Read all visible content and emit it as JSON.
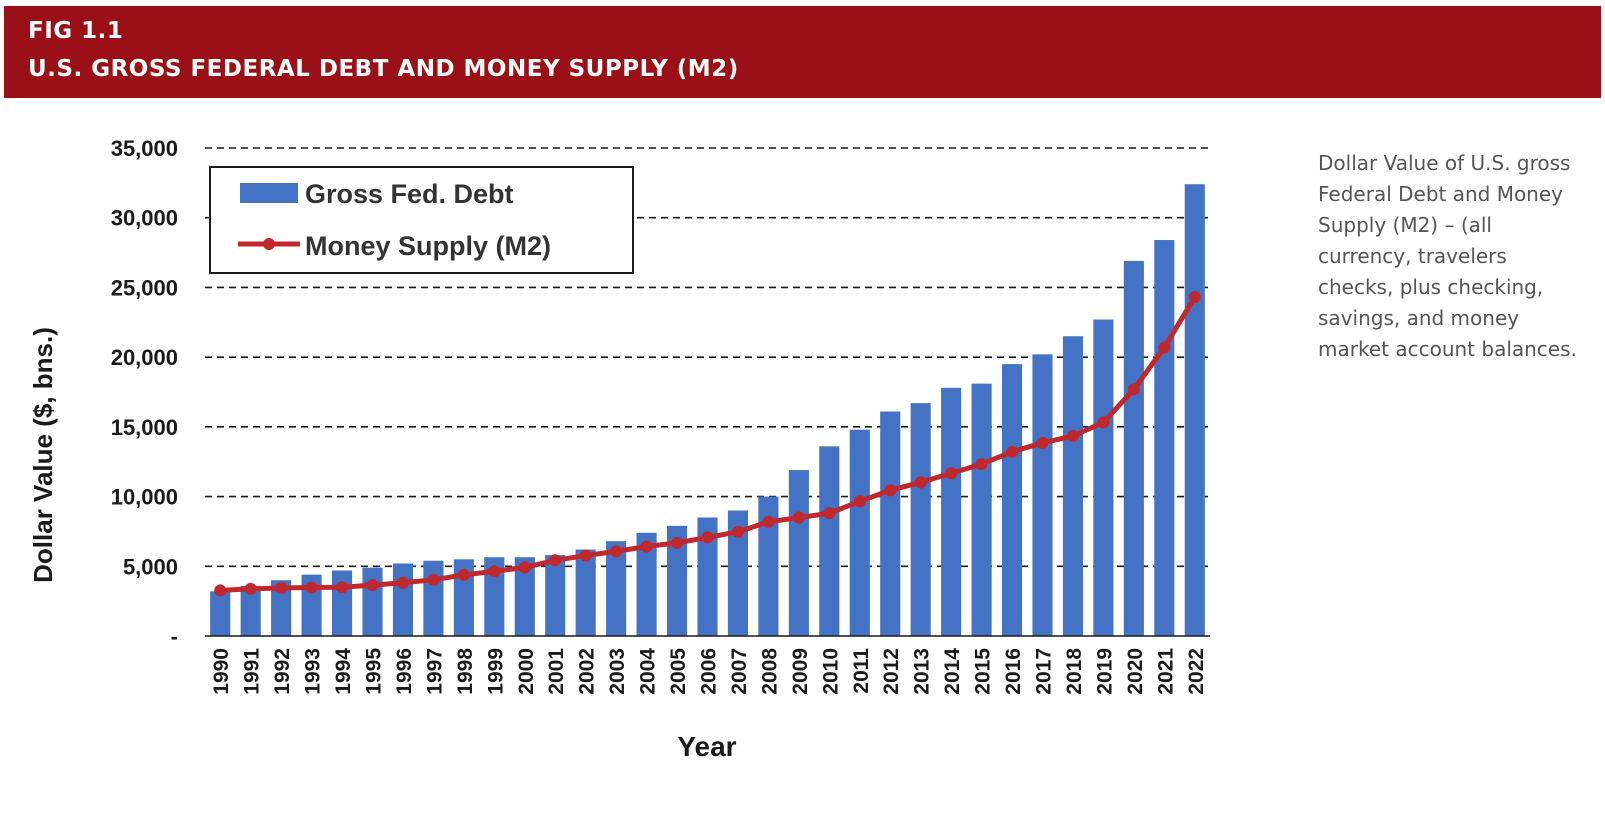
{
  "header": {
    "fig_label": "FIG 1.1",
    "title": "U.S. GROSS FEDERAL DEBT AND MONEY SUPPLY (M2)",
    "background_color": "#9b1016"
  },
  "side_note": "Dollar Value of U.S. gross Federal Debt and Money Supply (M2) – (all currency, travelers checks, plus checking, savings, and money market account balances.",
  "chart_data": {
    "type": "bar",
    "title": "",
    "xlabel": "Year",
    "ylabel": "Dollar Value ($, bns.)",
    "ylim": [
      0,
      35000
    ],
    "y_ticks": [
      0,
      5000,
      10000,
      15000,
      20000,
      25000,
      30000,
      35000
    ],
    "y_tick_labels": [
      "-",
      "5,000",
      "10,000",
      "15,000",
      "20,000",
      "25,000",
      "30,000",
      "35,000"
    ],
    "grid": "horizontal dashed",
    "legend_position": "top-left",
    "categories": [
      "1990",
      "1991",
      "1992",
      "1993",
      "1994",
      "1995",
      "1996",
      "1997",
      "1998",
      "1999",
      "2000",
      "2001",
      "2002",
      "2003",
      "2004",
      "2005",
      "2006",
      "2007",
      "2008",
      "2009",
      "2010",
      "2011",
      "2012",
      "2013",
      "2014",
      "2015",
      "2016",
      "2017",
      "2018",
      "2019",
      "2020",
      "2021",
      "2022"
    ],
    "series": [
      {
        "name": "Gross Fed. Debt",
        "type": "bar",
        "color": "#4472c4",
        "values": [
          3200,
          3600,
          4000,
          4400,
          4700,
          4900,
          5200,
          5400,
          5500,
          5650,
          5650,
          5800,
          6200,
          6800,
          7400,
          7900,
          8500,
          9000,
          10000,
          11900,
          13600,
          14800,
          16100,
          16700,
          17800,
          18100,
          19500,
          20200,
          21500,
          22700,
          26900,
          28400,
          32400
        ]
      },
      {
        "name": "Money Supply (M2)",
        "type": "line",
        "color": "#c0282d",
        "values": [
          3270,
          3380,
          3440,
          3480,
          3500,
          3650,
          3820,
          4030,
          4380,
          4640,
          4920,
          5430,
          5770,
          6070,
          6420,
          6680,
          7070,
          7470,
          8190,
          8490,
          8800,
          9660,
          10450,
          11020,
          11670,
          12330,
          13210,
          13850,
          14350,
          15320,
          17690,
          20690,
          24300
        ]
      }
    ]
  }
}
